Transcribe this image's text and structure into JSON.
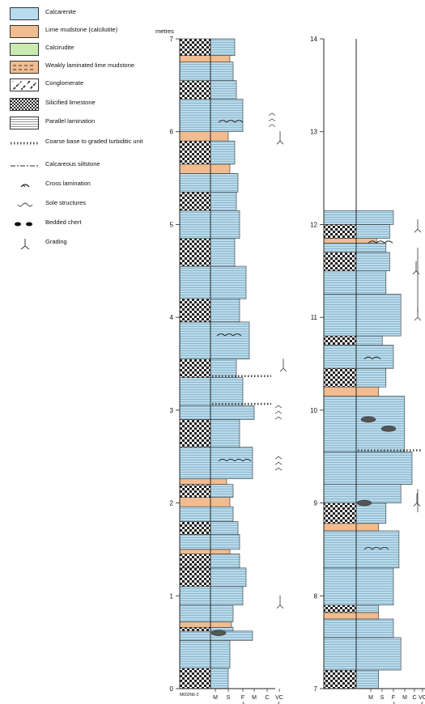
{
  "legend": {
    "items": [
      {
        "label": "Calcarenite",
        "kind": "calcarenite"
      },
      {
        "label": "Lime mudstone (calcilutite)",
        "kind": "mudstone"
      },
      {
        "label": "Calcirudite",
        "kind": "calcirudite"
      },
      {
        "label": "Weakly laminated lime mudstone",
        "kind": "weak-mud"
      },
      {
        "label": "Conglomerate",
        "kind": "conglomerate"
      },
      {
        "label": "Silicified limestone",
        "kind": "silicified"
      },
      {
        "label": "Parallel lamination",
        "kind": "parallel"
      },
      {
        "label": "Coarse base to graded turbiditic unit",
        "kind": "coarse-base"
      },
      {
        "label": "Calcareous siltstone",
        "kind": "siltstone"
      },
      {
        "label": "Cross lamination",
        "kind": "cross"
      },
      {
        "label": "Sole structures",
        "kind": "sole"
      },
      {
        "label": "Bedded chert",
        "kind": "chert"
      },
      {
        "label": "Grading",
        "kind": "grading"
      }
    ]
  },
  "colors": {
    "calcarenite": "#b7dcee",
    "mudstone": "#f1bc8f",
    "calcirudite": "#c9ebb2",
    "line": "#222222"
  },
  "column1": {
    "unit_label": "metres",
    "ticks": [
      "0",
      "1",
      "2",
      "3",
      "4",
      "5",
      "6",
      "7"
    ],
    "grain_ticks": [
      "M",
      "S",
      "F",
      "M",
      "C",
      "VC"
    ],
    "sample_code": "M602N6-3"
  },
  "column2": {
    "ticks": [
      "7",
      "8",
      "9",
      "10",
      "11",
      "12",
      "13",
      "14"
    ],
    "grain_ticks": [
      "M",
      "S",
      "F",
      "M",
      "C",
      "VC"
    ]
  }
}
